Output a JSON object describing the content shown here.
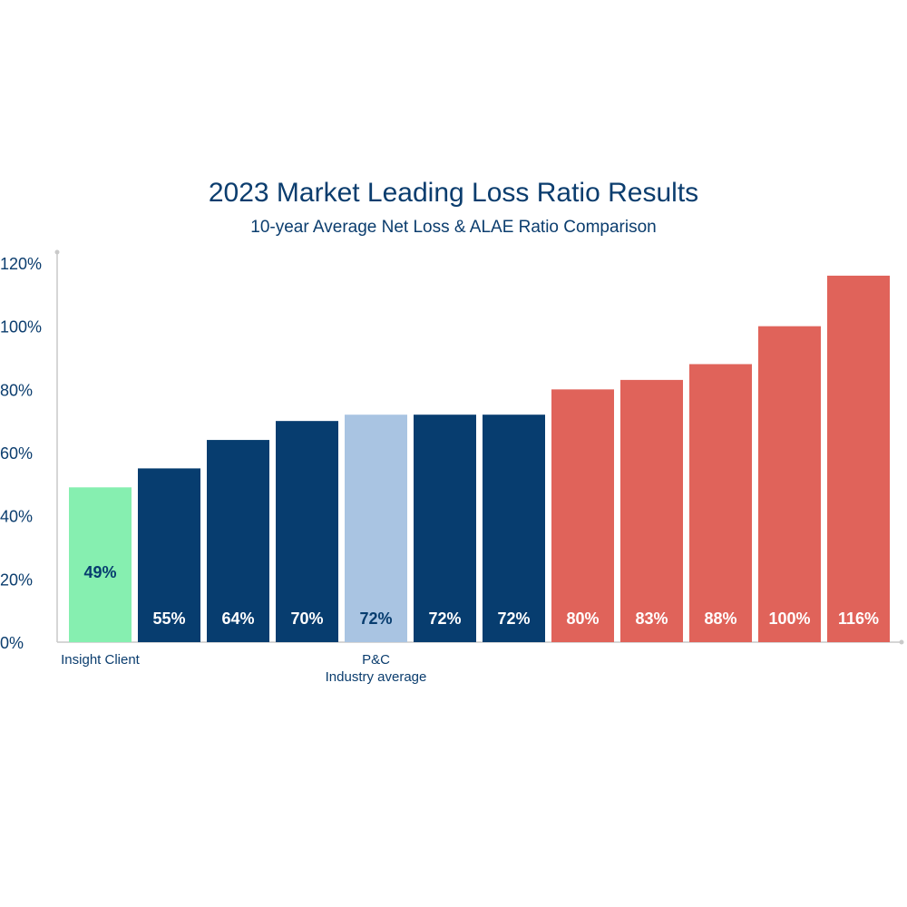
{
  "chart_data": {
    "type": "bar",
    "title": "2023 Market Leading Loss Ratio Results",
    "subtitle": "10-year Average Net Loss & ALAE Ratio Comparison",
    "xlabel": "",
    "ylabel": "",
    "ylim": [
      0,
      120
    ],
    "yticks": [
      "0%",
      "20%",
      "40%",
      "60%",
      "80%",
      "100%",
      "120%"
    ],
    "grid": false,
    "categories": [
      "Insight Client",
      "",
      "",
      "",
      "P&C\nIndustry average",
      "",
      "",
      "",
      "",
      "",
      "",
      ""
    ],
    "values": [
      49,
      55,
      64,
      70,
      72,
      72,
      72,
      80,
      83,
      88,
      100,
      116
    ],
    "labels": [
      "49%",
      "55%",
      "64%",
      "70%",
      "72%",
      "72%",
      "72%",
      "80%",
      "83%",
      "88%",
      "100%",
      "116%"
    ],
    "colors": [
      "#86efb0",
      "#073d6f",
      "#073d6f",
      "#073d6f",
      "#a9c4e2",
      "#073d6f",
      "#073d6f",
      "#e0635a",
      "#e0635a",
      "#e0635a",
      "#e0635a",
      "#e0635a"
    ],
    "label_colors": [
      "#073d6f",
      "#ffffff",
      "#ffffff",
      "#ffffff",
      "#073d6f",
      "#ffffff",
      "#ffffff",
      "#ffffff",
      "#ffffff",
      "#ffffff",
      "#ffffff",
      "#ffffff"
    ],
    "axis_color": "#c9c9c9",
    "text_color": "#0b3d6e"
  }
}
